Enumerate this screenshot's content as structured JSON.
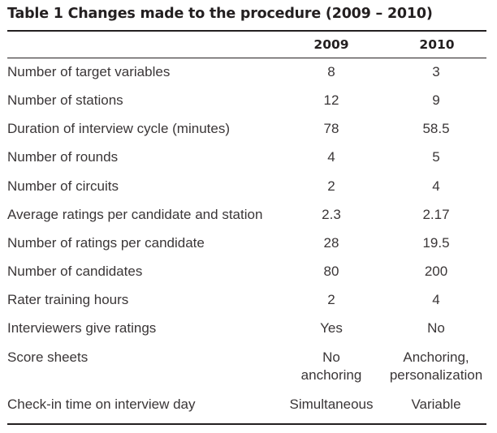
{
  "table": {
    "caption": "Table 1 Changes made to the procedure (2009 – 2010)",
    "columns": [
      "2009",
      "2010"
    ],
    "rows": [
      {
        "label": "Number of target variables",
        "v2009": "8",
        "v2010": "3"
      },
      {
        "label": "Number of stations",
        "v2009": "12",
        "v2010": "9"
      },
      {
        "label": "Duration of interview cycle (minutes)",
        "v2009": "78",
        "v2010": "58.5"
      },
      {
        "label": "Number of rounds",
        "v2009": "4",
        "v2010": "5"
      },
      {
        "label": "Number of circuits",
        "v2009": "2",
        "v2010": "4"
      },
      {
        "label": "Average ratings per candidate and station",
        "v2009": "2.3",
        "v2010": "2.17"
      },
      {
        "label": "Number of ratings per candidate",
        "v2009": "28",
        "v2010": "19.5"
      },
      {
        "label": "Number of candidates",
        "v2009": "80",
        "v2010": "200"
      },
      {
        "label": "Rater training hours",
        "v2009": "2",
        "v2010": "4"
      },
      {
        "label": "Interviewers give ratings",
        "v2009": "Yes",
        "v2010": "No"
      },
      {
        "label": "Score sheets",
        "v2009": "No\nanchoring",
        "v2010": "Anchoring,\npersonalization"
      },
      {
        "label": "Check-in time on interview day",
        "v2009": "Simultaneous",
        "v2010": "Variable"
      }
    ]
  }
}
